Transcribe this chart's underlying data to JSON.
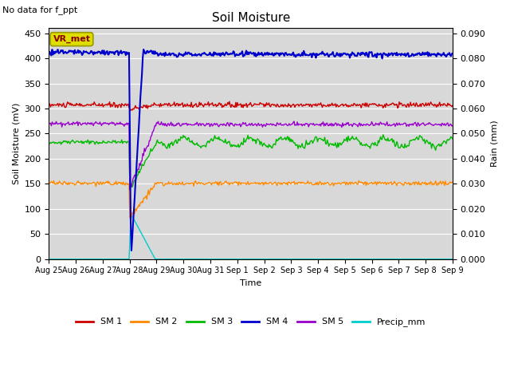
{
  "title": "Soil Moisture",
  "subtitle": "No data for f_ppt",
  "ylabel_left": "Soil Moisture (mV)",
  "ylabel_right": "Rain (mm)",
  "xlabel": "Time",
  "background_color": "#e8e8e8",
  "plot_bg_color": "#d8d8d8",
  "ylim_left": [
    0,
    460
  ],
  "ylim_right": [
    0,
    0.092
  ],
  "yticks_left": [
    0,
    50,
    100,
    150,
    200,
    250,
    300,
    350,
    400,
    450
  ],
  "yticks_right": [
    0.0,
    0.01,
    0.02,
    0.03,
    0.04,
    0.05,
    0.06,
    0.07,
    0.08,
    0.09
  ],
  "sm1_color": "#cc0000",
  "sm2_color": "#ff8800",
  "sm3_color": "#00bb00",
  "sm4_color": "#0000cc",
  "sm5_color": "#9900cc",
  "precip_color": "#00cccc",
  "vr_met_box_color": "#dddd00",
  "vr_met_text_color": "#880000",
  "sm1_base": 307,
  "sm2_base": 151,
  "sm3_base": 233,
  "sm4_base": 412,
  "sm5_base": 270,
  "n_points": 500,
  "noise_sm1": 2.5,
  "noise_sm2": 2.0,
  "noise_sm3": 4.0,
  "noise_sm4": 2.5,
  "noise_sm5": 2.0
}
